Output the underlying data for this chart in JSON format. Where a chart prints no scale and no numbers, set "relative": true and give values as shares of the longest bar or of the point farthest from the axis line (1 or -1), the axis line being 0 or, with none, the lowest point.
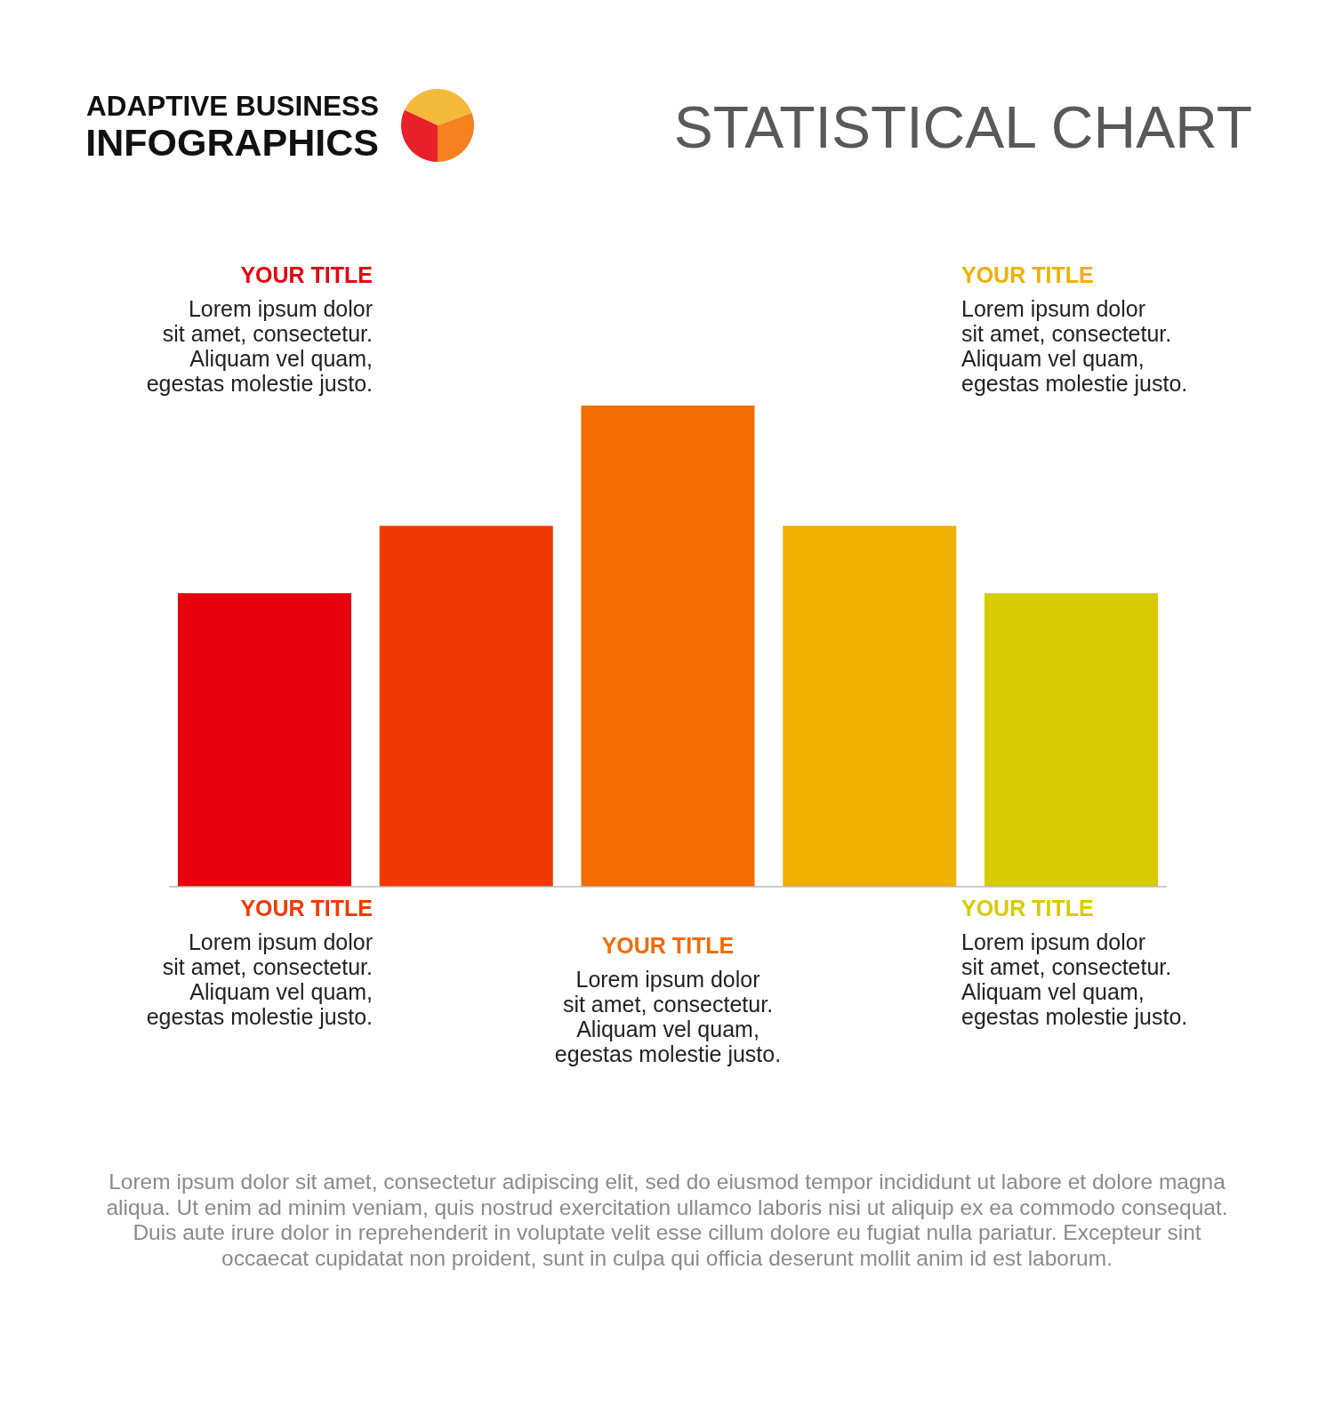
{
  "chart_data": {
    "type": "bar",
    "title": "STATISTICAL CHART",
    "subtitle": "ADAPTIVE BUSINESS\nINFOGRAPHICS",
    "categories": [
      null,
      null,
      null,
      null,
      null
    ],
    "values": [
      0.61,
      0.75,
      1,
      0.75,
      0.61
    ],
    "colors": [
      "#e8000f",
      "#f03a02",
      "#f26c00",
      "#f0b000",
      "#d8cc00"
    ],
    "relative": true,
    "annotations": [
      "YOUR TITLE",
      "Lorem ipsum dolor\nsit amet, consectetur.\nAliquam vel quam,\negestas molestie justo.",
      "YOUR TITLE",
      "Lorem ipsum dolor\nsit amet, consectetur.\nAliquam vel quam,\negestas molestie justo.",
      "YOUR TITLE",
      "Lorem ipsum dolor\nsit amet, consectetur.\nAliquam vel quam,\negestas molestie justo.",
      "YOUR TITLE",
      "Lorem ipsum dolor\nsit amet, consectetur.\nAliquam vel quam,\negestas molestie justo.",
      "YOUR TITLE",
      "Lorem ipsum dolor\nsit amet, consectetur.\nAliquam vel quam,\negestas molestie justo.",
      "Lorem ipsum dolor sit amet, consectetur adipiscing elit, sed do eiusmod tempor incididunt ut labore et dolore magna\naliqua. Ut enim ad minim veniam, quis nostrud exercitation ullamco laboris nisi ut aliquip ex ea commodo consequat.\nDuis aute irure dolor in reprehenderit in voluptate velit esse cillum dolore eu fugiat nulla pariatur. Excepteur sint\noccaecat cupidatat non proident, sunt in culpa qui officia deserunt mollit anim id est laborum."
    ]
  }
}
